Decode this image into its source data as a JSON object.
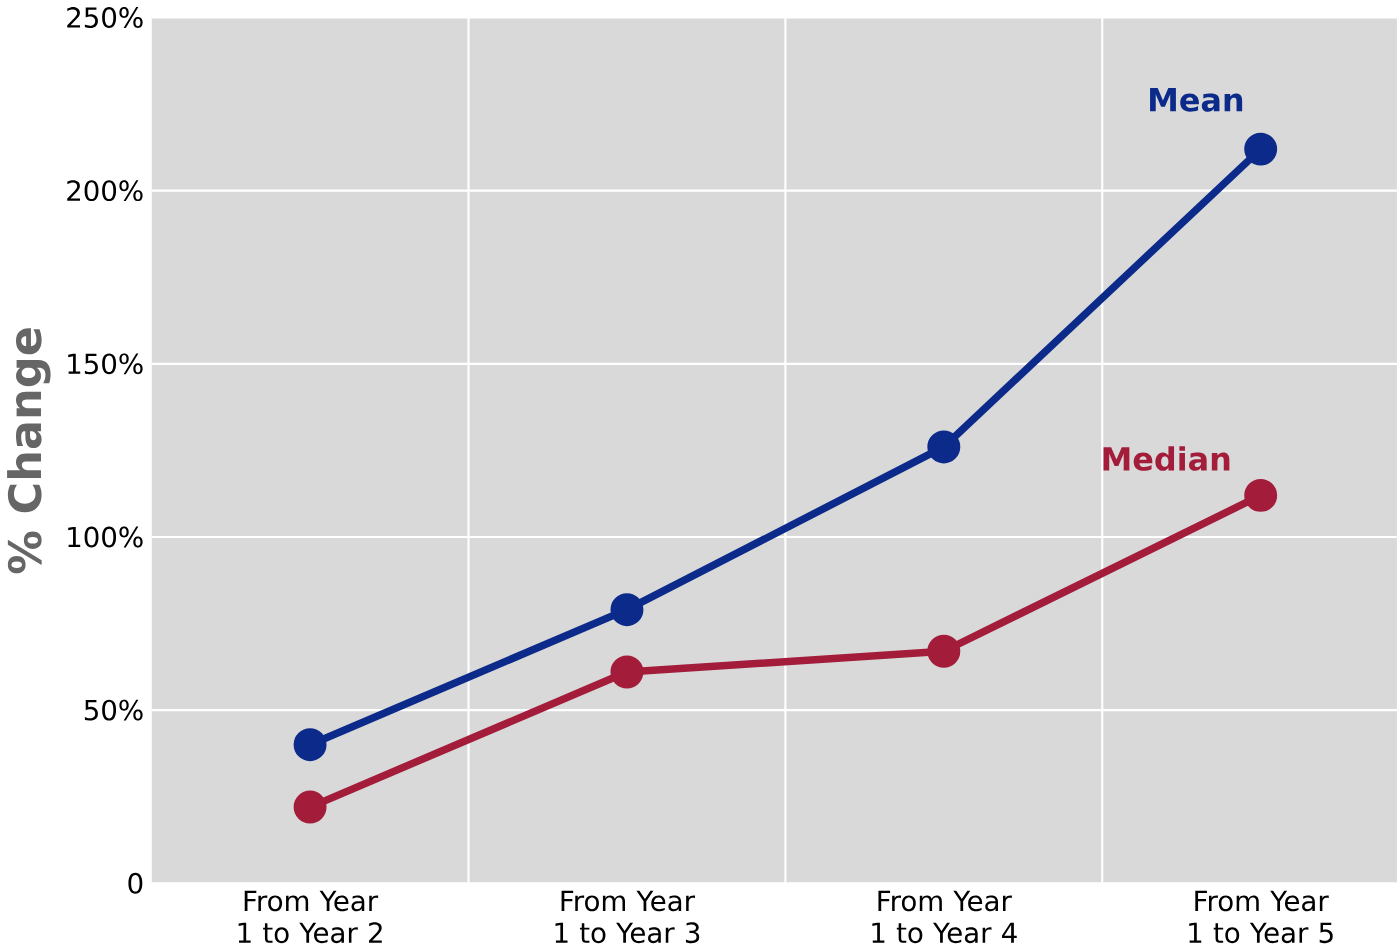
{
  "chart_data": {
    "type": "line",
    "ylabel": "% Change",
    "categories": [
      "From Year 1 to Year 2",
      "From Year 1 to Year 3",
      "From Year 1 to Year 4",
      "From Year 1 to Year 5"
    ],
    "series": [
      {
        "name": "Mean",
        "color": "#0b2a8a",
        "values": [
          40,
          79,
          126,
          212
        ]
      },
      {
        "name": "Median",
        "color": "#a31d3b",
        "values": [
          22,
          61,
          67,
          112
        ]
      }
    ],
    "ylim": [
      0,
      250
    ],
    "yticks": [
      {
        "value": 0,
        "label": "0"
      },
      {
        "value": 50,
        "label": "50%"
      },
      {
        "value": 100,
        "label": "100%"
      },
      {
        "value": 150,
        "label": "150%"
      },
      {
        "value": 200,
        "label": "200%"
      },
      {
        "value": 250,
        "label": "250%"
      }
    ],
    "grid": true,
    "marker": "circle",
    "line_style": "solid"
  }
}
